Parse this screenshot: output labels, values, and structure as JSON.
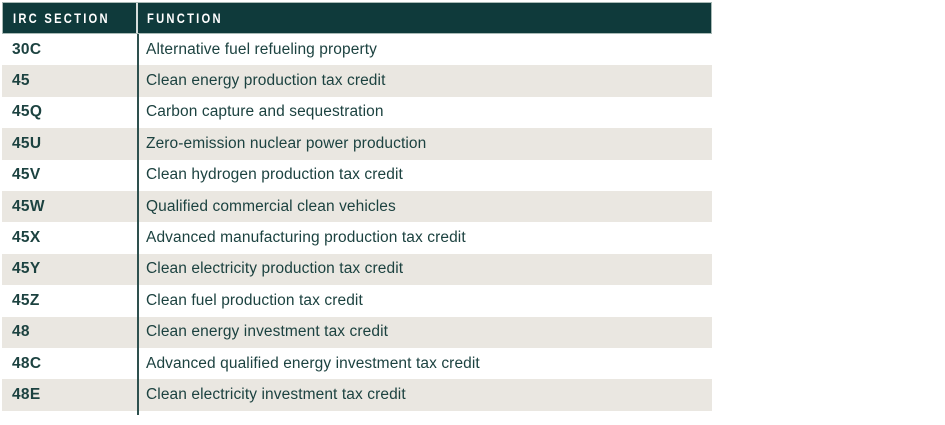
{
  "table": {
    "columns": [
      {
        "label": "IRC SECTION"
      },
      {
        "label": "FUNCTION"
      }
    ],
    "rows": [
      {
        "section": "30C",
        "function": "Alternative fuel refueling property"
      },
      {
        "section": "45",
        "function": "Clean energy production tax credit"
      },
      {
        "section": "45Q",
        "function": "Carbon capture and sequestration"
      },
      {
        "section": "45U",
        "function": "Zero-emission nuclear power production"
      },
      {
        "section": "45V",
        "function": "Clean hydrogen production tax credit"
      },
      {
        "section": "45W",
        "function": "Qualified commercial clean vehicles"
      },
      {
        "section": "45X",
        "function": "Advanced manufacturing production tax credit"
      },
      {
        "section": "45Y",
        "function": "Clean electricity production tax credit"
      },
      {
        "section": "45Z",
        "function": "Clean fuel production tax credit"
      },
      {
        "section": "48",
        "function": "Clean energy investment tax credit"
      },
      {
        "section": "48C",
        "function": "Advanced qualified energy investment tax credit"
      },
      {
        "section": "48E",
        "function": "Clean electricity investment tax credit"
      }
    ]
  },
  "theme": {
    "header_bg": "#0f3a3b",
    "header_text": "#ffffff",
    "header_border": "#a9bab6",
    "header_divider": "#d7dedc",
    "row_bg": "#ffffff",
    "row_alt_bg": "#eae7e1",
    "body_text": "#1c4240",
    "divider": "#2e504e"
  }
}
